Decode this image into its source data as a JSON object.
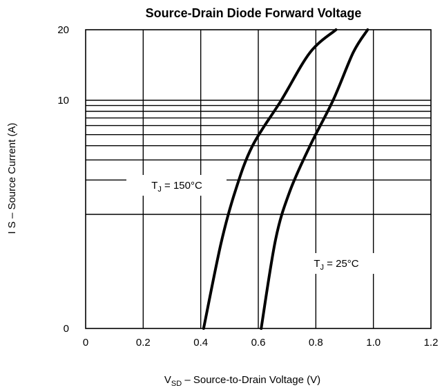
{
  "chart_data": {
    "type": "line",
    "title": "Source-Drain Diode Forward Voltage",
    "xlabel": {
      "main": "V",
      "sub": "SD",
      "rest": " –  Source-to-Drain Voltage (V)"
    },
    "ylabel": "I S – Source Current (A)",
    "xlim": [
      0,
      1.2
    ],
    "x_ticks": [
      "0",
      "0.2",
      "0.4",
      "0.6",
      "0.8",
      "1.0",
      "1.2"
    ],
    "x_tick_values": [
      0,
      0.2,
      0.4,
      0.6,
      0.8,
      1.0,
      1.2
    ],
    "y_ticks": [
      "0",
      "10",
      "20"
    ],
    "y_tick_values": [
      0,
      10,
      20
    ],
    "y_scale": "log",
    "y_gridlines": [
      1,
      2,
      3,
      4,
      5,
      6,
      7,
      8,
      9,
      10
    ],
    "grid": true,
    "series": [
      {
        "label": {
          "pre": "T",
          "sub": "J",
          "post": " = 150°C"
        },
        "x": [
          0.41,
          0.47,
          0.52,
          0.58,
          0.68,
          0.78,
          0.87
        ],
        "y": [
          0.1,
          0.55,
          1.6,
          4.0,
          10.0,
          16.0,
          20.0
        ]
      },
      {
        "label": {
          "pre": "T",
          "sub": "J",
          "post": " = 25°C"
        },
        "x": [
          0.61,
          0.66,
          0.71,
          0.78,
          0.86,
          0.93,
          0.98
        ],
        "y": [
          0.1,
          0.6,
          1.6,
          4.0,
          10.0,
          16.0,
          20.0
        ]
      }
    ]
  }
}
